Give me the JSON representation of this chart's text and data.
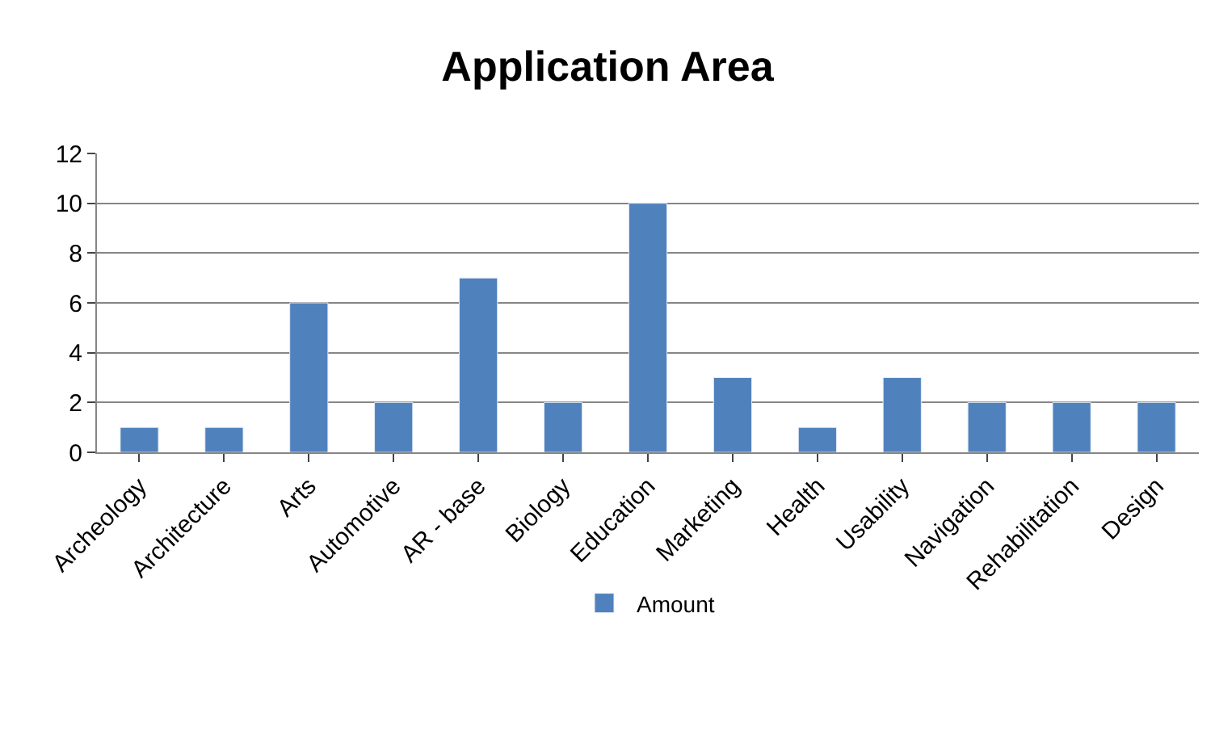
{
  "chart_data": {
    "type": "bar",
    "title": "Application Area",
    "categories": [
      "Archeology",
      "Architecture",
      "Arts",
      "Automotive",
      "AR - base",
      "Biology",
      "Education",
      "Marketing",
      "Health",
      "Usability",
      "Navigation",
      "Rehabilitation",
      "Design"
    ],
    "series": [
      {
        "name": "Amount",
        "color": "#4f81bd",
        "values": [
          1,
          1,
          6,
          2,
          7,
          2,
          10,
          3,
          1,
          3,
          2,
          2,
          2
        ]
      }
    ],
    "ylim": [
      0,
      12
    ],
    "yticks": [
      0,
      2,
      4,
      6,
      8,
      10,
      12
    ],
    "grid": "y",
    "legend": "bottom"
  }
}
